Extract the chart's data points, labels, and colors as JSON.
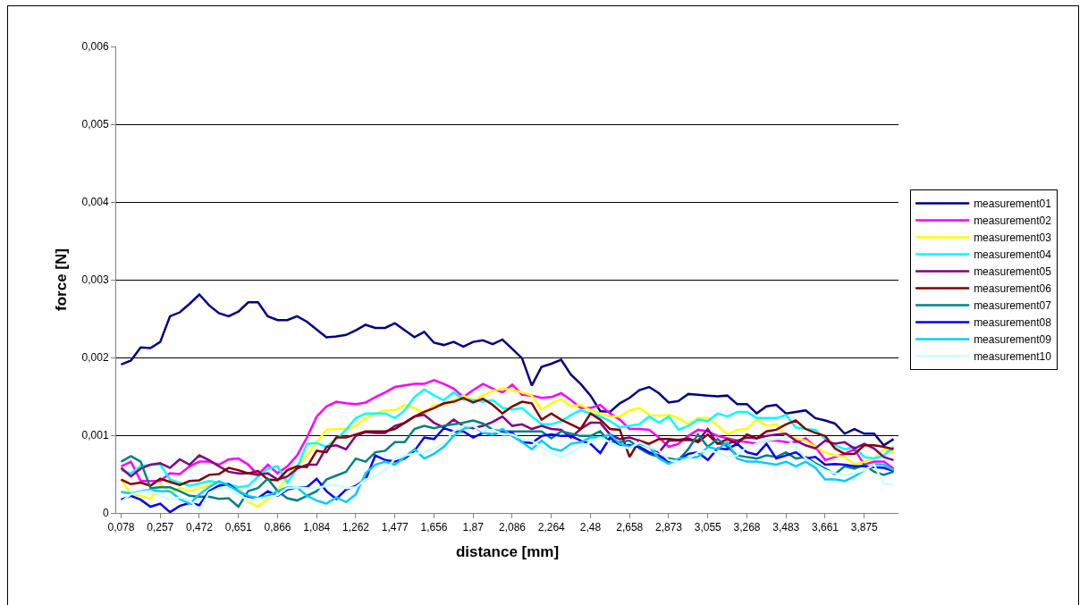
{
  "chart_data": {
    "type": "line",
    "xlabel": "distance [mm]",
    "ylabel": "force [N]",
    "categories": [
      "0,078",
      null,
      null,
      null,
      "0,257",
      null,
      null,
      null,
      "0,472",
      null,
      null,
      null,
      "0,651",
      null,
      null,
      null,
      "0,866",
      null,
      null,
      null,
      "1,084",
      null,
      null,
      null,
      "1,262",
      null,
      null,
      null,
      "1,477",
      null,
      null,
      null,
      "1,656",
      null,
      null,
      null,
      "1,87",
      null,
      null,
      null,
      "2,086",
      null,
      null,
      null,
      "2,264",
      null,
      null,
      null,
      "2,48",
      null,
      null,
      null,
      "2,658",
      null,
      null,
      null,
      "2,873",
      null,
      null,
      null,
      "3,055",
      null,
      null,
      null,
      "3,268",
      null,
      null,
      null,
      "3,483",
      null,
      null,
      null,
      "3,661",
      null,
      null,
      null,
      "3,875",
      null,
      null,
      null
    ],
    "ylim": [
      0,
      0.006
    ],
    "yticks": [
      0,
      {
        "value": 0.001,
        "label": "0,001"
      },
      {
        "value": 0.002,
        "label": "0,002"
      },
      {
        "value": 0.003,
        "label": "0,003"
      },
      {
        "value": 0.004,
        "label": "0,004"
      },
      {
        "value": 0.005,
        "label": "0,005"
      },
      {
        "value": 0.006,
        "label": "0,006"
      }
    ],
    "grid": "y",
    "legend": "right",
    "marker": "none",
    "line_style": "solid",
    "series": [
      {
        "name": "measurement01",
        "color": "#000080",
        "values": [
          0.00191,
          0.00196,
          0.00213,
          0.00212,
          0.0022,
          0.00253,
          0.00258,
          0.00269,
          0.00281,
          0.00267,
          0.00257,
          0.00253,
          0.00259,
          0.00271,
          0.00271,
          0.00253,
          0.00248,
          0.00248,
          0.00253,
          0.00246,
          0.00236,
          0.00226,
          0.00227,
          0.00229,
          0.00235,
          0.00242,
          0.00238,
          0.00238,
          0.00244,
          0.00235,
          0.00226,
          0.00233,
          0.00219,
          0.00216,
          0.0022,
          0.00214,
          0.0022,
          0.00222,
          0.00217,
          0.00223,
          0.00211,
          0.00199,
          0.00164,
          0.00188,
          0.00192,
          0.00197,
          0.00178,
          0.00166,
          0.00151,
          0.00131,
          0.0013,
          0.00141,
          0.00148,
          0.00158,
          0.00162,
          0.00154,
          0.00142,
          0.00144,
          0.00153,
          0.00152,
          0.00151,
          0.0015,
          0.00151,
          0.0014,
          0.0014,
          0.00128,
          0.00137,
          0.00139,
          0.00128,
          0.0013,
          0.00132,
          0.00122,
          0.00119,
          0.00115,
          0.00102,
          0.00108,
          0.00102,
          0.00102,
          0.00087,
          0.00095
        ]
      },
      {
        "name": "measurement02",
        "color": "#ff00ff",
        "values": [
          0.0006,
          0.00066,
          0.00041,
          0.00041,
          0.00041,
          0.00051,
          0.0005,
          0.0006,
          0.00066,
          0.00066,
          0.00062,
          0.00069,
          0.0007,
          0.00062,
          0.00049,
          0.00062,
          0.00051,
          0.0006,
          0.00074,
          0.00097,
          0.00124,
          0.00137,
          0.00143,
          0.00141,
          0.0014,
          0.00142,
          0.00149,
          0.00155,
          0.00162,
          0.00164,
          0.00166,
          0.00166,
          0.00171,
          0.00166,
          0.0016,
          0.00149,
          0.00158,
          0.00166,
          0.0016,
          0.00155,
          0.00165,
          0.00152,
          0.00151,
          0.00148,
          0.00149,
          0.00154,
          0.00145,
          0.00135,
          0.00135,
          0.00139,
          0.00128,
          0.0012,
          0.00108,
          0.00108,
          0.00107,
          0.00097,
          0.00085,
          0.00089,
          0.00099,
          0.00107,
          0.00105,
          0.00099,
          0.00096,
          0.00093,
          0.00091,
          0.00089,
          0.00093,
          0.00093,
          0.00091,
          0.00091,
          0.00096,
          0.00085,
          0.00068,
          0.00072,
          0.00076,
          0.00082,
          0.00062,
          0.00066,
          0.00066,
          0.00057
        ]
      },
      {
        "name": "measurement03",
        "color": "#ffff00",
        "values": [
          0.00043,
          0.00024,
          0.00022,
          0.00018,
          0.00037,
          0.00026,
          0.00032,
          0.00028,
          0.00032,
          0.00035,
          0.00039,
          0.00037,
          0.00032,
          0.00014,
          8e-05,
          0.00018,
          0.00028,
          0.00047,
          0.0006,
          0.00074,
          0.00091,
          0.00107,
          0.00108,
          0.00108,
          0.00112,
          0.00122,
          0.00128,
          0.00132,
          0.00132,
          0.00139,
          0.00135,
          0.00128,
          0.00139,
          0.00139,
          0.00145,
          0.00151,
          0.00145,
          0.00151,
          0.00157,
          0.0016,
          0.00158,
          0.00155,
          0.00151,
          0.00133,
          0.00141,
          0.00147,
          0.00137,
          0.00139,
          0.00132,
          0.00128,
          0.00124,
          0.00124,
          0.00132,
          0.00135,
          0.00126,
          0.00125,
          0.00126,
          0.00122,
          0.00114,
          0.00122,
          0.00122,
          0.00112,
          0.00101,
          0.00107,
          0.00108,
          0.0012,
          0.00112,
          0.00114,
          0.00099,
          0.00096,
          0.00093,
          0.00085,
          0.00078,
          0.00074,
          0.00072,
          0.00062,
          0.00066,
          0.0007,
          0.00082,
          0.00078
        ]
      },
      {
        "name": "measurement04",
        "color": "#00ffff",
        "values": [
          0.00055,
          0.00051,
          0.0006,
          0.00062,
          0.00062,
          0.00043,
          0.00039,
          0.00035,
          0.00038,
          0.00041,
          0.00039,
          0.00037,
          0.00033,
          0.00035,
          0.00047,
          0.00057,
          0.0006,
          0.00039,
          0.00058,
          0.00089,
          0.0009,
          0.00085,
          0.00095,
          0.00107,
          0.00122,
          0.00128,
          0.00128,
          0.00128,
          0.00122,
          0.00132,
          0.00149,
          0.00159,
          0.00151,
          0.00145,
          0.00155,
          0.00146,
          0.00145,
          0.00143,
          0.00145,
          0.00135,
          0.00133,
          0.00135,
          0.00124,
          0.00114,
          0.00114,
          0.00118,
          0.00126,
          0.00132,
          0.00128,
          0.00124,
          0.00118,
          0.0011,
          0.00112,
          0.00114,
          0.00124,
          0.00116,
          0.00124,
          0.00107,
          0.00112,
          0.0012,
          0.00118,
          0.00128,
          0.00124,
          0.0013,
          0.0013,
          0.00122,
          0.00122,
          0.00122,
          0.00126,
          0.0011,
          0.00108,
          0.00107,
          0.00095,
          0.00087,
          0.00082,
          0.00085,
          0.00072,
          0.0007,
          0.00074,
          0.00085
        ]
      },
      {
        "name": "measurement05",
        "color": "#800080",
        "values": [
          0.00058,
          0.00047,
          0.00057,
          0.00062,
          0.00064,
          0.00058,
          0.00069,
          0.00062,
          0.00074,
          0.00068,
          0.0006,
          0.00053,
          0.00051,
          0.00051,
          0.00049,
          0.00051,
          0.00043,
          0.00047,
          0.00057,
          0.00062,
          0.00062,
          0.00085,
          0.00087,
          0.00082,
          0.00099,
          0.00104,
          0.00103,
          0.00103,
          0.00112,
          0.00116,
          0.00124,
          0.00126,
          0.00116,
          0.0011,
          0.0012,
          0.00112,
          0.00109,
          0.00112,
          0.00117,
          0.00124,
          0.00112,
          0.00114,
          0.00108,
          0.00112,
          0.00108,
          0.00107,
          0.00097,
          0.00108,
          0.00116,
          0.00116,
          0.00101,
          0.00095,
          0.00097,
          0.00093,
          0.00085,
          0.00078,
          0.00093,
          0.00093,
          0.00094,
          0.00093,
          0.00108,
          0.00089,
          0.00089,
          0.00093,
          0.00097,
          0.00096,
          0.00099,
          0.00101,
          0.00102,
          0.00093,
          0.00087,
          0.00083,
          0.00093,
          0.00089,
          0.00091,
          0.00083,
          0.00089,
          0.00083,
          0.00072,
          0.00068
        ]
      },
      {
        "name": "measurement06",
        "color": "#800000",
        "values": [
          0.00043,
          0.00037,
          0.00039,
          0.00035,
          0.00044,
          0.0004,
          0.00036,
          0.00041,
          0.00042,
          0.00049,
          0.0005,
          0.00058,
          0.00055,
          0.00051,
          0.00054,
          0.00043,
          0.00042,
          0.00055,
          0.0006,
          0.00059,
          0.0008,
          0.00078,
          0.00097,
          0.00097,
          0.00101,
          0.00105,
          0.00105,
          0.00105,
          0.00108,
          0.00116,
          0.00124,
          0.0013,
          0.00135,
          0.00141,
          0.00143,
          0.00148,
          0.00142,
          0.00147,
          0.00139,
          0.00128,
          0.00137,
          0.00143,
          0.00141,
          0.0012,
          0.00128,
          0.0012,
          0.00114,
          0.00108,
          0.00128,
          0.0012,
          0.00108,
          0.00107,
          0.00072,
          0.00093,
          0.00089,
          0.00095,
          0.00095,
          0.00094,
          0.00096,
          0.00091,
          0.00101,
          0.00089,
          0.00095,
          0.00089,
          0.00101,
          0.00096,
          0.00105,
          0.00107,
          0.00114,
          0.00119,
          0.00108,
          0.00103,
          0.00099,
          0.00083,
          0.00076,
          0.00076,
          0.00087,
          0.00087,
          0.00085,
          0.00082
        ]
      },
      {
        "name": "measurement07",
        "color": "#008080",
        "values": [
          0.00066,
          0.00073,
          0.00066,
          0.00032,
          0.00033,
          0.00033,
          0.00028,
          0.00022,
          0.00021,
          0.00021,
          0.00018,
          0.00019,
          8e-05,
          0.00028,
          0.00032,
          0.00044,
          0.00028,
          0.00019,
          0.00016,
          0.00022,
          0.00028,
          0.00043,
          0.00048,
          0.00053,
          0.0007,
          0.00066,
          0.00078,
          0.0008,
          0.00091,
          0.00091,
          0.00108,
          0.00112,
          0.00109,
          0.00112,
          0.00114,
          0.00116,
          0.00119,
          0.00115,
          0.00107,
          0.00105,
          0.00105,
          0.00105,
          0.00105,
          0.00105,
          0.00096,
          0.00105,
          0.00102,
          0.00099,
          0.00099,
          0.00105,
          0.00091,
          0.00091,
          0.00093,
          0.00083,
          0.00076,
          0.00072,
          0.0007,
          0.00068,
          0.00082,
          0.00101,
          0.00085,
          0.00095,
          0.00085,
          0.00074,
          0.00072,
          0.0007,
          0.00074,
          0.00072,
          0.00078,
          0.0007,
          0.00072,
          0.00064,
          0.00057,
          0.0005,
          0.0006,
          0.00057,
          0.00062,
          0.00053,
          0.00049,
          0.00053
        ]
      },
      {
        "name": "measurement08",
        "color": "#0000ff",
        "values": [
          0.00017,
          0.00022,
          0.00017,
          8e-05,
          0.00012,
          1e-05,
          9e-05,
          0.00013,
          0.0001,
          0.00028,
          0.00035,
          0.00037,
          0.00028,
          0.00021,
          0.00019,
          0.00028,
          0.00022,
          0.0003,
          0.00033,
          0.00033,
          0.00044,
          0.00028,
          0.00018,
          0.0003,
          0.00035,
          0.00043,
          0.00074,
          0.00068,
          0.00066,
          0.0007,
          0.0008,
          0.00097,
          0.00095,
          0.00109,
          0.00105,
          0.00105,
          0.00097,
          0.00103,
          0.00101,
          0.00105,
          0.00103,
          0.00091,
          0.0009,
          0.00099,
          0.00101,
          0.00099,
          0.00099,
          0.00093,
          0.00089,
          0.00077,
          0.00097,
          0.00087,
          0.00087,
          0.00085,
          0.00078,
          0.00074,
          0.00066,
          0.00068,
          0.00076,
          0.00078,
          0.00068,
          0.00083,
          0.00082,
          0.00089,
          0.00078,
          0.00075,
          0.00089,
          0.0007,
          0.00074,
          0.00078,
          0.0007,
          0.00072,
          0.00062,
          0.00063,
          0.00062,
          0.0006,
          0.0006,
          0.00059,
          0.00058,
          0.00054
        ]
      },
      {
        "name": "measurement09",
        "color": "#00ccff",
        "values": [
          0.00027,
          0.00025,
          0.00028,
          0.0003,
          0.00028,
          0.00028,
          0.00018,
          0.00012,
          0.00024,
          0.00033,
          0.00041,
          0.00035,
          0.00028,
          0.00022,
          0.00019,
          0.00022,
          0.00028,
          0.00033,
          0.00033,
          0.00022,
          0.00016,
          0.00012,
          0.0002,
          0.00014,
          0.00024,
          0.00051,
          0.00062,
          0.00066,
          0.00062,
          0.00072,
          0.00082,
          0.0007,
          0.00076,
          0.00085,
          0.00099,
          0.00108,
          0.00112,
          0.00103,
          0.00101,
          0.00108,
          0.00099,
          0.00091,
          0.00082,
          0.00093,
          0.00083,
          0.0008,
          0.00089,
          0.00091,
          0.00097,
          0.00097,
          0.00101,
          0.00089,
          0.00085,
          0.00089,
          0.00085,
          0.0007,
          0.00063,
          0.0007,
          0.00071,
          0.00072,
          0.00085,
          0.00082,
          0.00091,
          0.0007,
          0.00066,
          0.00066,
          0.00064,
          0.00062,
          0.00066,
          0.0006,
          0.00066,
          0.00058,
          0.00043,
          0.00043,
          0.00041,
          0.00047,
          0.00055,
          0.00063,
          0.00062,
          0.00055
        ]
      },
      {
        "name": "measurement10",
        "color": "#ccffff",
        "values": [
          0.00014,
          0.00024,
          0.00027,
          0.00028,
          0.00022,
          0.00017,
          0.0002,
          0.00016,
          4e-05,
          0.00026,
          0.00032,
          0.00032,
          0.00024,
          0.00016,
          0.00018,
          0.0002,
          0.00023,
          0.00032,
          0.00033,
          0.00032,
          0.00032,
          0.00035,
          0.00036,
          0.00032,
          0.00033,
          0.00043,
          0.00047,
          0.00055,
          0.0007,
          0.00074,
          0.00076,
          0.00078,
          0.00083,
          0.00089,
          0.00105,
          0.00112,
          0.00112,
          0.00105,
          0.00107,
          0.00101,
          0.00101,
          0.00095,
          0.00093,
          0.00085,
          0.00078,
          0.00071,
          0.00078,
          0.00085,
          0.00091,
          0.00097,
          0.00091,
          0.00085,
          0.00083,
          0.00091,
          0.00085,
          0.0008,
          0.00068,
          0.00066,
          0.0007,
          0.00078,
          0.0008,
          0.00078,
          0.00072,
          0.00074,
          0.00085,
          0.00089,
          0.00093,
          0.00095,
          0.00097,
          0.00085,
          0.0007,
          0.00062,
          0.00055,
          0.00051,
          0.00049,
          0.00051,
          0.00055,
          0.00062,
          0.00037,
          0.00037
        ]
      }
    ]
  }
}
